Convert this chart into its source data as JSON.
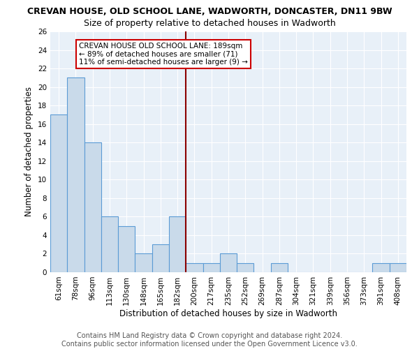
{
  "title1": "CREVAN HOUSE, OLD SCHOOL LANE, WADWORTH, DONCASTER, DN11 9BW",
  "title2": "Size of property relative to detached houses in Wadworth",
  "xlabel": "Distribution of detached houses by size in Wadworth",
  "ylabel": "Number of detached properties",
  "footer1": "Contains HM Land Registry data © Crown copyright and database right 2024.",
  "footer2": "Contains public sector information licensed under the Open Government Licence v3.0.",
  "bar_labels": [
    "61sqm",
    "78sqm",
    "96sqm",
    "113sqm",
    "130sqm",
    "148sqm",
    "165sqm",
    "182sqm",
    "200sqm",
    "217sqm",
    "235sqm",
    "252sqm",
    "269sqm",
    "287sqm",
    "304sqm",
    "321sqm",
    "339sqm",
    "356sqm",
    "373sqm",
    "391sqm",
    "408sqm"
  ],
  "bar_values": [
    17,
    21,
    14,
    6,
    5,
    2,
    3,
    6,
    1,
    1,
    2,
    1,
    0,
    1,
    0,
    0,
    0,
    0,
    0,
    1,
    1
  ],
  "bar_color": "#c9daea",
  "bar_edgecolor": "#5b9bd5",
  "marker_index": 7,
  "marker_color": "#8b0000",
  "annotation_text": "CREVAN HOUSE OLD SCHOOL LANE: 189sqm\n← 89% of detached houses are smaller (71)\n11% of semi-detached houses are larger (9) →",
  "annotation_box_color": "white",
  "annotation_box_edgecolor": "#cc0000",
  "ylim": [
    0,
    26
  ],
  "yticks": [
    0,
    2,
    4,
    6,
    8,
    10,
    12,
    14,
    16,
    18,
    20,
    22,
    24,
    26
  ],
  "background_color": "#e8f0f8",
  "grid_color": "white",
  "title1_fontsize": 9,
  "title2_fontsize": 9,
  "xlabel_fontsize": 8.5,
  "ylabel_fontsize": 8.5,
  "tick_fontsize": 7.5,
  "footer_fontsize": 7,
  "annot_fontsize": 7.5
}
